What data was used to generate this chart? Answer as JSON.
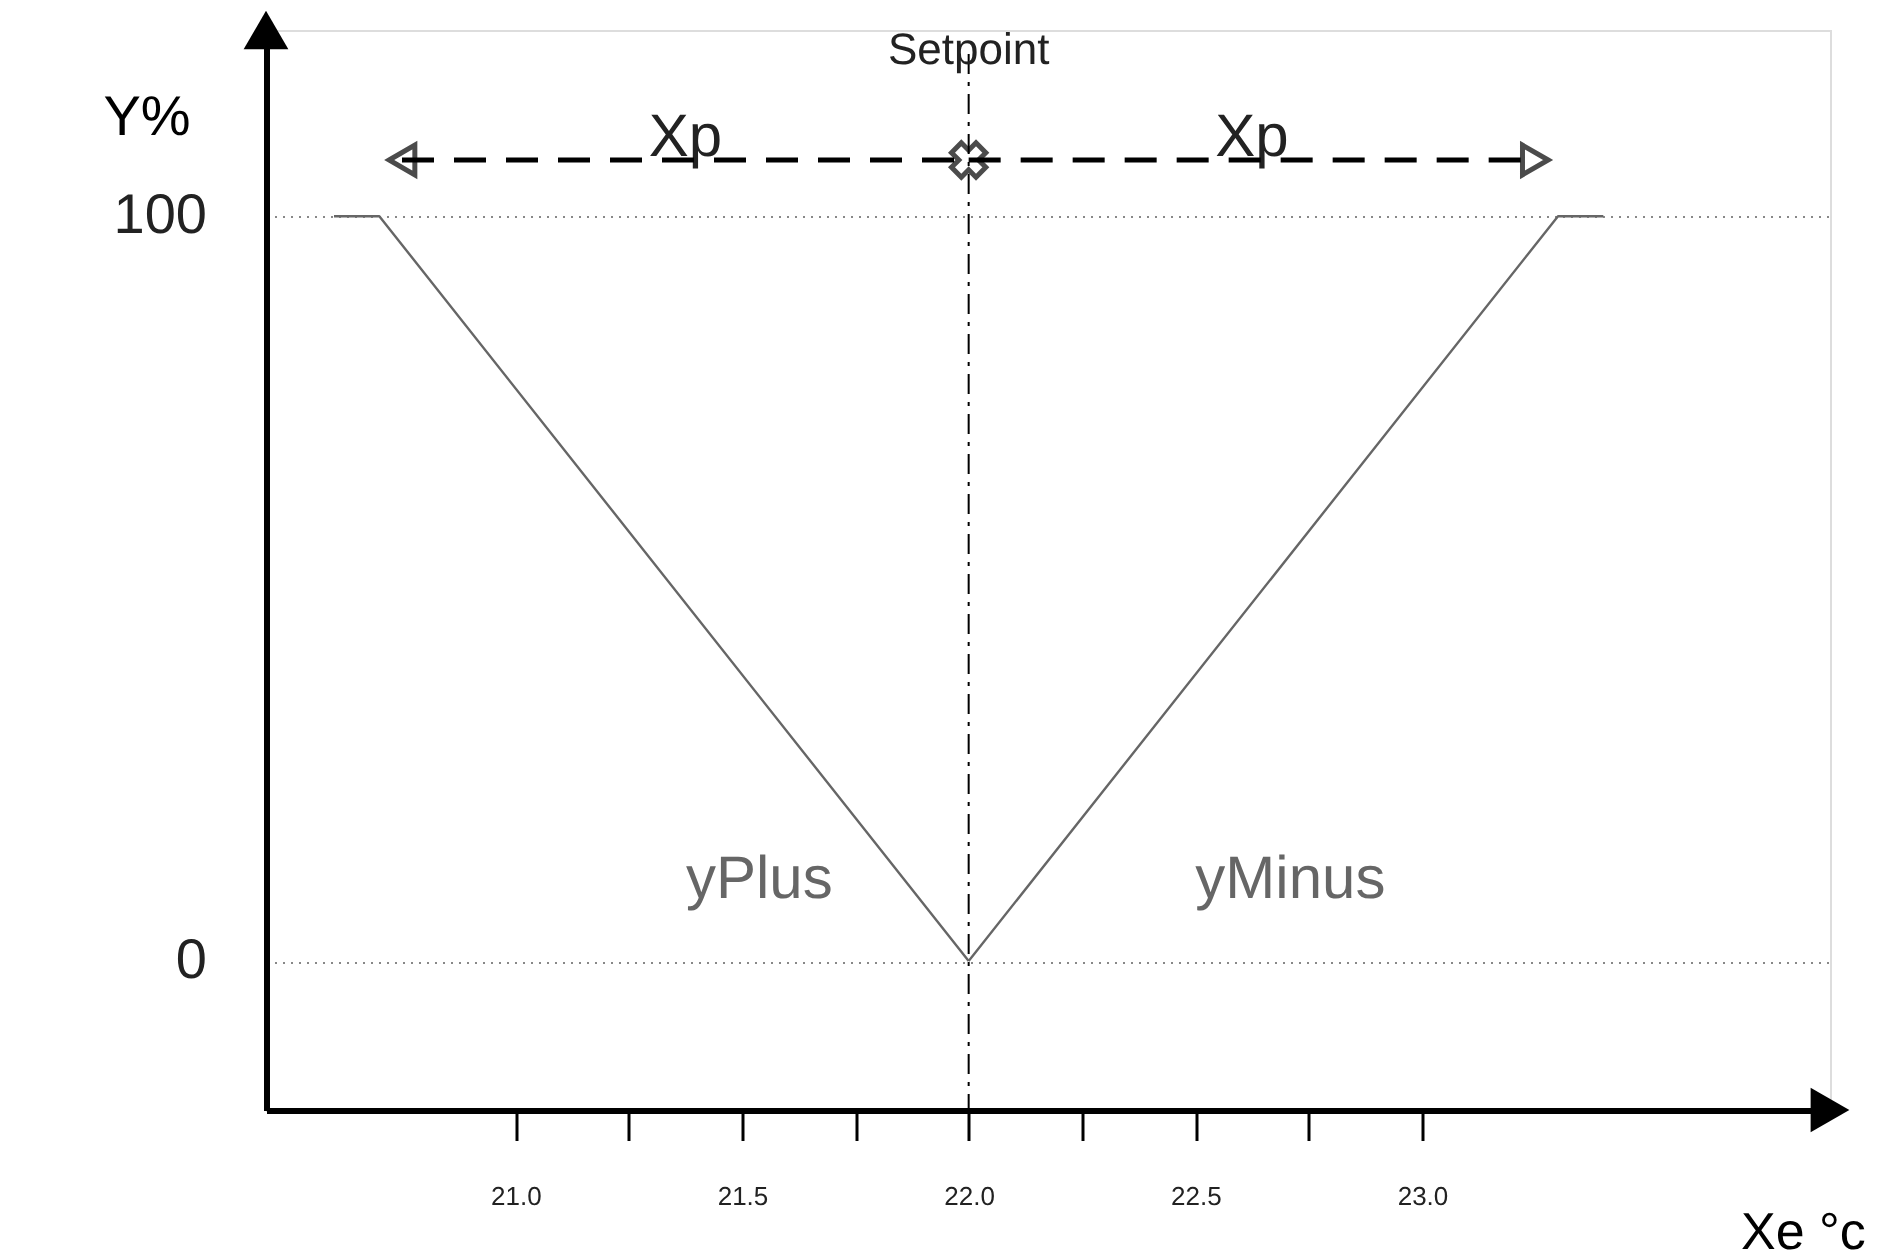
{
  "chart_data": {
    "type": "line",
    "xlabel": "Xe °c",
    "ylabel": "Y%",
    "series": [
      {
        "name": "yPlus",
        "color": "#666666",
        "x": [
          20.6,
          20.7,
          22.0
        ],
        "values": [
          100,
          100,
          0
        ]
      },
      {
        "name": "yMinus",
        "color": "#666666",
        "x": [
          22.0,
          23.3,
          23.4
        ],
        "values": [
          0,
          100,
          100
        ]
      }
    ],
    "xlim": [
      20.45,
      23.9
    ],
    "xticks": [
      {
        "value": 21.0,
        "label": "21.0"
      },
      {
        "value": 21.25,
        "label": null
      },
      {
        "value": 21.5,
        "label": "21.5"
      },
      {
        "value": 21.75,
        "label": null
      },
      {
        "value": 22.0,
        "label": "22.0"
      },
      {
        "value": 22.25,
        "label": null
      },
      {
        "value": 22.5,
        "label": "22.5"
      },
      {
        "value": 22.75,
        "label": null
      },
      {
        "value": 23.0,
        "label": "23.0"
      }
    ],
    "ylim": [
      -20,
      125
    ],
    "yticks": [
      0,
      100
    ],
    "grid": "y",
    "marker": "none",
    "line_style": "solid",
    "ref_lines": [
      {
        "axis": "x",
        "value": 22.0,
        "label": "Setpoint",
        "line_style": "dashed"
      }
    ],
    "annotations": [
      "Xp",
      "Xp"
    ]
  }
}
